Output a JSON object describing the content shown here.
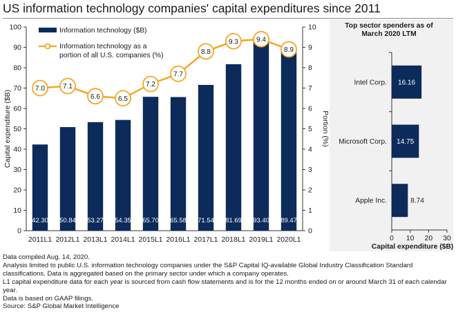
{
  "title": "US information technology companies' capital expenditures since 2011",
  "colors": {
    "bar": "#0c2b5b",
    "line": "#f5a623",
    "marker_fill": "#ffffff",
    "panel_bg": "#f1f1f1",
    "axis": "#333333"
  },
  "chart_data": [
    {
      "type": "bar+line",
      "categories": [
        "2011L1",
        "2012L1",
        "2013L1",
        "2014L1",
        "2015L1",
        "2016L1",
        "2017L1",
        "2018L1",
        "2019L1",
        "2020L1"
      ],
      "series": [
        {
          "name": "Information technology ($B)",
          "type": "bar",
          "axis": "left",
          "values": [
            42.3,
            50.84,
            53.27,
            54.35,
            65.7,
            65.58,
            71.54,
            81.69,
            93.4,
            89.47
          ],
          "labels": [
            "42.30",
            "50.84",
            "53.27",
            "54.35",
            "65.70",
            "65.58",
            "71.54",
            "81.69",
            "93.40",
            "89.47"
          ]
        },
        {
          "name": "Information technology as a portion of all U.S. companies (%)",
          "type": "line",
          "axis": "right",
          "values": [
            7.0,
            7.1,
            6.6,
            6.5,
            7.2,
            7.7,
            8.8,
            9.3,
            9.4,
            8.9
          ],
          "labels": [
            "7.0",
            "7.1",
            "6.6",
            "6.5",
            "7.2",
            "7.7",
            "8.8",
            "9.3",
            "9.4",
            "8.9"
          ]
        }
      ],
      "legend": [
        "Information technology ($B)",
        "Information technology as a",
        "portion of all U.S. companies (%)"
      ],
      "ylabel": "Capital expenditure ($B)",
      "y2label": "Portion (%)",
      "ylim": [
        0,
        100
      ],
      "yticks": [
        "0",
        "10",
        "20",
        "30",
        "40",
        "50",
        "60",
        "70",
        "80",
        "90",
        "100"
      ],
      "y2lim": [
        0,
        10
      ],
      "y2ticks": [
        "0",
        "1",
        "2",
        "3",
        "4",
        "5",
        "6",
        "7",
        "8",
        "9",
        "10"
      ],
      "legend_position": "top-left"
    },
    {
      "type": "bar",
      "orientation": "horizontal",
      "title": [
        "Top sector spenders as of",
        "March 2020 LTM"
      ],
      "categories": [
        "Intel Corp.",
        "Microsoft Corp.",
        "Apple Inc."
      ],
      "values": [
        16.16,
        14.75,
        8.74
      ],
      "labels": [
        "16.16",
        "14.75",
        "8.74"
      ],
      "xlabel": "Capital expenditure ($B)",
      "xlim": [
        0,
        30
      ],
      "xticks": [
        "0",
        "10",
        "20",
        "30"
      ]
    }
  ],
  "notes": [
    "Data compiled Aug. 14, 2020.",
    "Analysis limited to public U.S. information technology companies under the S&P Capital IQ-available Global Industry Classification Standard classifications. Data is aggregated based on the primary sector under which a company operates.",
    "L1 capital expenditure data for each year is sourced from cash flow statements and is for the 12 months ended on or around March 31 of each calendar year.",
    "Data is based on GAAP filings.",
    "Source: S&P Global Market Intelligence"
  ]
}
